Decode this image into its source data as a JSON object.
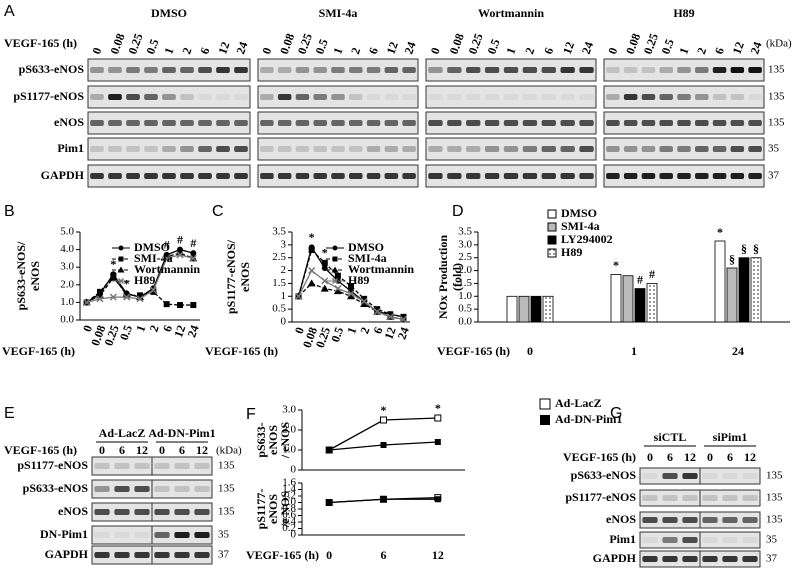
{
  "panel_a": {
    "letter": "A",
    "time_label": "VEGF-165 (h)",
    "kda_label": "(kDa)",
    "groups": [
      "DMSO",
      "SMI-4a",
      "Wortmannin",
      "H89"
    ],
    "times": [
      "0",
      "0.08",
      "0.25",
      "0.5",
      "1",
      "2",
      "6",
      "12",
      "24"
    ],
    "rows": [
      {
        "name": "pS633-eNOS",
        "kda": 135
      },
      {
        "name": "pS1177-eNOS",
        "kda": 135
      },
      {
        "name": "eNOS",
        "kda": 135
      },
      {
        "name": "Pim1",
        "kda": 35
      },
      {
        "name": "GAPDH",
        "kda": 37
      }
    ]
  },
  "panel_e": {
    "letter": "E",
    "time_label": "VEGF-165 (h)",
    "kda_label": "(kDa)",
    "groups": [
      "Ad-LacZ",
      "Ad-DN-Pim1"
    ],
    "times": [
      "0",
      "6",
      "12"
    ],
    "rows": [
      {
        "name": "pS1177-eNOS",
        "kda": 135
      },
      {
        "name": "pS633-eNOS",
        "kda": 135
      },
      {
        "name": "eNOS",
        "kda": 135
      },
      {
        "name": "DN-Pim1",
        "kda": 35
      },
      {
        "name": "GAPDH",
        "kda": 37
      }
    ]
  },
  "panel_g": {
    "letter": "G",
    "time_label": "VEGF-165 (h)",
    "groups": [
      "siCTL",
      "siPim1"
    ],
    "times": [
      "0",
      "6",
      "12"
    ],
    "rows": [
      {
        "name": "pS633-eNOS",
        "kda": 135
      },
      {
        "name": "pS1177-eNOS",
        "kda": 135
      },
      {
        "name": "eNOS",
        "kda": 135
      },
      {
        "name": "Pim1",
        "kda": 35
      },
      {
        "name": "GAPDH",
        "kda": 37
      }
    ]
  },
  "chart_data": [
    {
      "type": "line",
      "panel": "B",
      "ylabel": [
        "pS633-eNOS/",
        "eNOS"
      ],
      "xlabel": "VEGF-165 (h)",
      "categories": [
        "0",
        "0.08",
        "0.25",
        "0.5",
        "1",
        "2",
        "6",
        "12",
        "24"
      ],
      "ylim": [
        0,
        5
      ],
      "yticks": [
        {
          "value": 0,
          "label": "0.0"
        },
        {
          "value": 1,
          "label": "1.0"
        },
        {
          "value": 2,
          "label": "2.0"
        },
        {
          "value": 3,
          "label": "3.0"
        },
        {
          "value": 4,
          "label": "4.0"
        },
        {
          "value": 5,
          "label": "5.0"
        }
      ],
      "series": [
        {
          "name": "DMSO",
          "color": "#000000",
          "marker": "circle",
          "values": [
            1.0,
            1.5,
            2.6,
            1.5,
            1.3,
            1.8,
            3.7,
            4.0,
            3.8
          ]
        },
        {
          "name": "SMI-4a",
          "color": "#000000",
          "marker": "square",
          "dash": true,
          "values": [
            1.0,
            1.6,
            2.5,
            1.4,
            1.4,
            1.6,
            0.9,
            0.85,
            0.85
          ]
        },
        {
          "name": "Wortmannin",
          "color": "#000000",
          "marker": "triangle",
          "dash": true,
          "values": [
            1.0,
            1.4,
            2.4,
            1.5,
            1.3,
            1.7,
            3.6,
            3.8,
            3.5
          ]
        },
        {
          "name": "H89",
          "color": "#777777",
          "marker": "cross",
          "values": [
            1.0,
            1.2,
            1.3,
            1.3,
            1.2,
            1.7,
            3.5,
            3.7,
            3.5
          ]
        }
      ],
      "annotations": [
        "*",
        "*",
        "#",
        "#",
        "#"
      ]
    },
    {
      "type": "line",
      "panel": "C",
      "ylabel": [
        "pS1177-eNOS/",
        "eNOS"
      ],
      "xlabel": "VEGF-165 (h)",
      "categories": [
        "0",
        "0.08",
        "0.25",
        "0.5",
        "1",
        "2",
        "6",
        "12",
        "24"
      ],
      "ylim": [
        0,
        3.5
      ],
      "yticks": [
        0,
        0.5,
        1,
        1.5,
        2,
        2.5,
        3,
        3.5
      ],
      "series": [
        {
          "name": "DMSO",
          "color": "#000000",
          "marker": "circle",
          "values": [
            1.0,
            2.9,
            2.1,
            1.6,
            1.2,
            0.8,
            0.4,
            0.3,
            0.2
          ]
        },
        {
          "name": "SMI-4a",
          "color": "#000000",
          "marker": "square",
          "dash": true,
          "values": [
            1.0,
            2.8,
            2.3,
            1.8,
            1.4,
            0.9,
            0.5,
            0.3,
            0.2
          ]
        },
        {
          "name": "Wortmannin",
          "color": "#000000",
          "marker": "triangle",
          "dash": true,
          "values": [
            1.0,
            1.5,
            1.3,
            1.2,
            1.0,
            0.7,
            0.4,
            0.2,
            0.1
          ]
        },
        {
          "name": "H89",
          "color": "#777777",
          "marker": "cross",
          "values": [
            1.0,
            2.0,
            1.6,
            1.3,
            1.1,
            0.8,
            0.4,
            0.2,
            0.1
          ]
        }
      ],
      "annotations": [
        "*",
        "*"
      ]
    },
    {
      "type": "bar",
      "panel": "D",
      "ylabel": [
        "NOx Production",
        "(fold)"
      ],
      "xlabel": "VEGF-165 (h)",
      "categories": [
        "0",
        "1",
        "24"
      ],
      "ylim": [
        0,
        3.5
      ],
      "yticks": [
        {
          "value": 0,
          "label": "0.0"
        },
        0.5,
        {
          "value": 1,
          "label": "1.0"
        },
        1.5,
        {
          "value": 2,
          "label": "2.0"
        },
        2.5,
        {
          "value": 3,
          "label": "3.0"
        },
        3.5
      ],
      "series": [
        {
          "name": "DMSO",
          "color": "#ffffff",
          "values": [
            1.0,
            1.85,
            3.15
          ]
        },
        {
          "name": "SMI-4a",
          "color": "#bbbbbb",
          "values": [
            1.0,
            1.8,
            2.1
          ]
        },
        {
          "name": "LY294002",
          "color": "#000000",
          "values": [
            1.0,
            1.3,
            2.5
          ]
        },
        {
          "name": "H89",
          "color": "#ffffff",
          "pattern": "dots",
          "values": [
            1.0,
            1.5,
            2.5
          ]
        }
      ],
      "annotations": [
        "*",
        "#",
        "#",
        "*",
        "§",
        "§",
        "§"
      ]
    },
    {
      "type": "line",
      "panel": "F",
      "ylabel": [
        "pS633-",
        "eNOS",
        "/ eNOS"
      ],
      "categories": [
        null,
        null,
        null
      ],
      "ylim": [
        0,
        3
      ],
      "yticks": [
        0,
        {
          "value": 1,
          "label": "1.0"
        },
        {
          "value": 2,
          "label": "2.0"
        },
        {
          "value": 3,
          "label": "3.0"
        }
      ],
      "series": [
        {
          "name": "Ad-LacZ",
          "color": "#000000",
          "marker": "square-open",
          "values": [
            1.0,
            2.5,
            2.6
          ]
        },
        {
          "name": "Ad-DN-Pim1",
          "color": "#000000",
          "marker": "square",
          "values": [
            1.0,
            1.25,
            1.4
          ]
        }
      ],
      "annotations": [
        "*",
        "*"
      ]
    },
    {
      "type": "line",
      "ylabel": [
        "pS1177-",
        "eNOS",
        "/e NOS"
      ],
      "xlabel": "VEGF-165 (h)",
      "categories": [
        "0",
        "6",
        "12"
      ],
      "ylim": [
        0,
        1.6
      ],
      "yticks": [
        0,
        0.2,
        0.4,
        0.6,
        0.8,
        {
          "value": 1,
          "label": "1.0"
        },
        1.2,
        1.4,
        1.6
      ],
      "series": [
        {
          "color": "#000000",
          "marker": "square-open",
          "values": [
            1.0,
            1.1,
            1.15
          ]
        },
        {
          "color": "#000000",
          "marker": "square",
          "values": [
            1.0,
            1.1,
            1.1
          ]
        }
      ]
    }
  ]
}
